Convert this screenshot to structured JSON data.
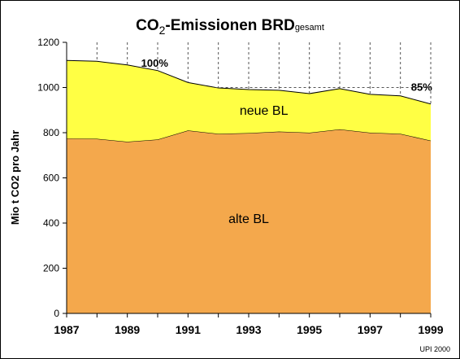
{
  "chart_data": {
    "type": "area",
    "stacked": true,
    "title": {
      "prefix": "CO",
      "subscript": "2",
      "main": "-Emissionen BRD",
      "suffix": "gesamt"
    },
    "ylabel": "Mio t CO2 pro Jahr",
    "xlabel": "",
    "ylim": [
      0,
      1200
    ],
    "yticks": [
      "0",
      "200",
      "400",
      "600",
      "800",
      "1000",
      "1200"
    ],
    "x": [
      1987,
      1988,
      1989,
      1990,
      1991,
      1992,
      1993,
      1994,
      1995,
      1996,
      1997,
      1998,
      1999
    ],
    "xticks": [
      "1987",
      "1989",
      "1991",
      "1993",
      "1995",
      "1997",
      "1999"
    ],
    "series": [
      {
        "name": "alte BL",
        "color": "#f4a84c",
        "values": [
          775,
          773,
          760,
          770,
          810,
          795,
          798,
          805,
          800,
          815,
          800,
          795,
          765
        ]
      },
      {
        "name": "neue BL",
        "color": "#ffff44",
        "values": [
          345,
          343,
          340,
          305,
          212,
          203,
          193,
          183,
          173,
          180,
          170,
          168,
          162
        ]
      }
    ],
    "reference_line": {
      "value": 1000
    },
    "annotations": [
      "100%",
      "85%"
    ],
    "grid": {
      "vertical_dashed": true,
      "horizontal": false
    },
    "credit": "UPI 2000"
  }
}
